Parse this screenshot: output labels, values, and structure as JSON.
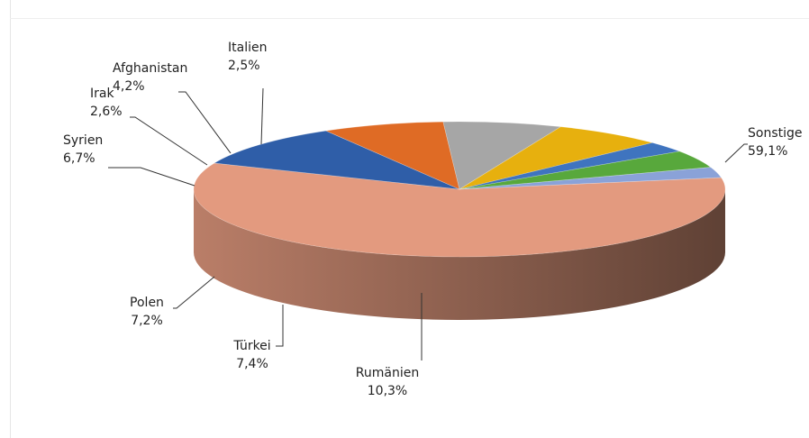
{
  "chart_data": {
    "type": "pie",
    "style": "3d",
    "categories": [
      "Sonstige",
      "Rumänien",
      "Türkei",
      "Polen",
      "Syrien",
      "Irak",
      "Afghanistan",
      "Italien"
    ],
    "values": [
      59.1,
      10.3,
      7.4,
      7.2,
      6.7,
      2.6,
      4.2,
      2.5
    ],
    "value_labels": [
      "59,1%",
      "10,3%",
      "7,4%",
      "7,2%",
      "6,7%",
      "2,6%",
      "4,2%",
      "2,5%"
    ],
    "colors": [
      "#e39a7f",
      "#2f5ea8",
      "#df6b25",
      "#a6a6a6",
      "#e7b00e",
      "#3f74bf",
      "#58a83c",
      "#8aa2d8"
    ],
    "legend": "none"
  }
}
